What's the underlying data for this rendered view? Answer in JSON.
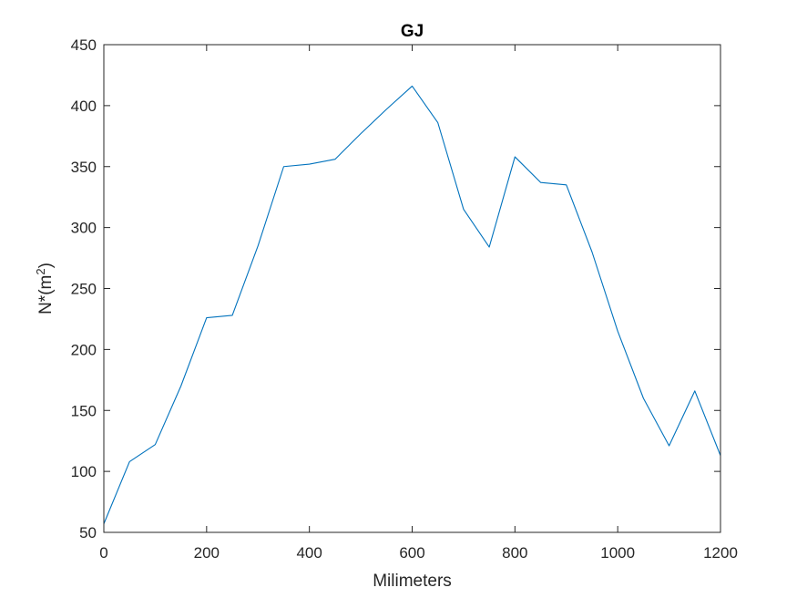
{
  "chart_data": {
    "type": "line",
    "title": "GJ",
    "xlabel": "Milimeters",
    "ylabel": {
      "base": "N*(m",
      "sup": "2",
      "close": ")"
    },
    "xlim": [
      0,
      1200
    ],
    "ylim": [
      50,
      450
    ],
    "xticks": [
      0,
      200,
      400,
      600,
      800,
      1000,
      1200
    ],
    "yticks": [
      50,
      100,
      150,
      200,
      250,
      300,
      350,
      400,
      450
    ],
    "grid": false,
    "series": [
      {
        "name": "GJ",
        "color": "#0072bd",
        "x": [
          0,
          50,
          100,
          150,
          200,
          250,
          300,
          350,
          400,
          450,
          500,
          550,
          600,
          650,
          700,
          750,
          800,
          850,
          900,
          950,
          1000,
          1050,
          1100,
          1150,
          1200
        ],
        "y": [
          57,
          108,
          122,
          170,
          226,
          228,
          285,
          350,
          352,
          356,
          377,
          397,
          416,
          386,
          315,
          284,
          358,
          337,
          335,
          280,
          215,
          160,
          121,
          166,
          113
        ]
      }
    ]
  }
}
